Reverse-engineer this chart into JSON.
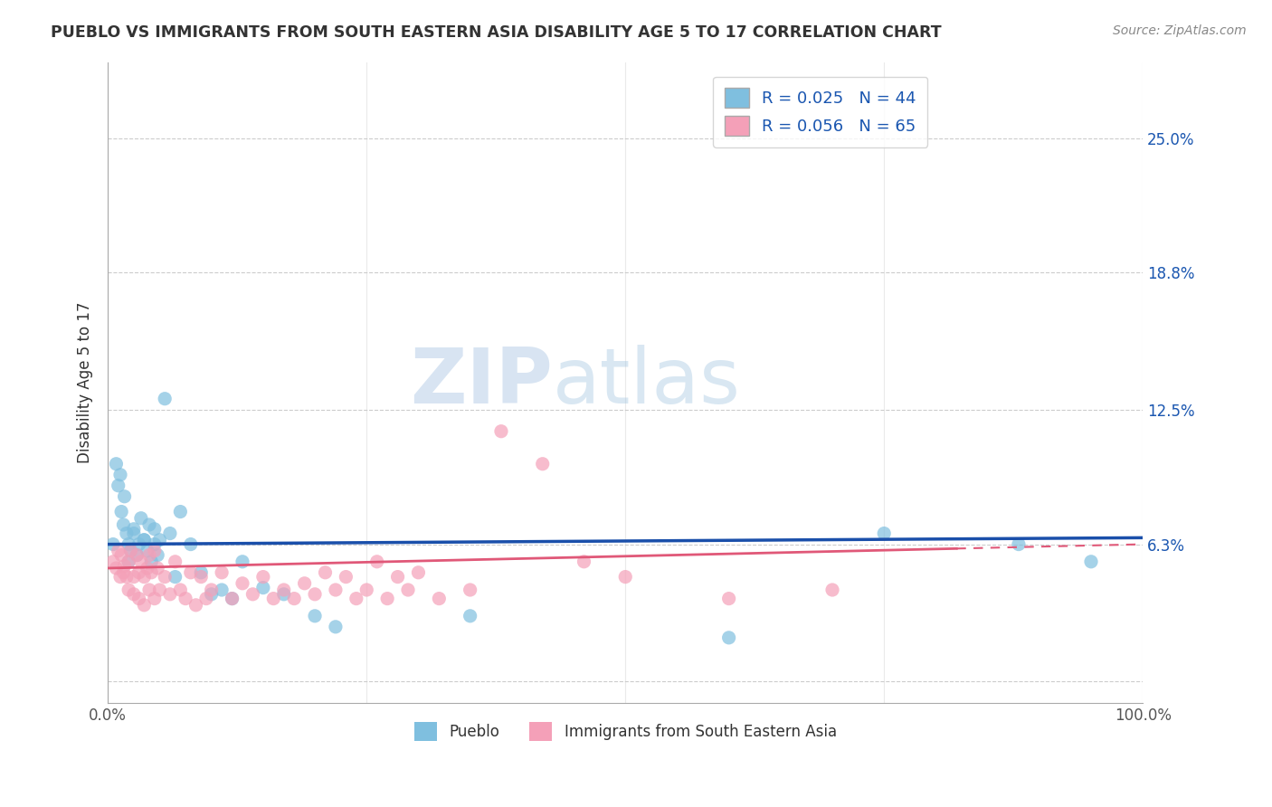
{
  "title": "PUEBLO VS IMMIGRANTS FROM SOUTH EASTERN ASIA DISABILITY AGE 5 TO 17 CORRELATION CHART",
  "source": "Source: ZipAtlas.com",
  "ylabel": "Disability Age 5 to 17",
  "xlim": [
    0,
    1.0
  ],
  "ylim": [
    -0.01,
    0.285
  ],
  "yticks": [
    0.0,
    0.063,
    0.125,
    0.188,
    0.25
  ],
  "ytick_labels": [
    "",
    "6.3%",
    "12.5%",
    "18.8%",
    "25.0%"
  ],
  "xtick_labels": [
    "0.0%",
    "100.0%"
  ],
  "legend_label1": "Pueblo",
  "legend_label2": "Immigrants from South Eastern Asia",
  "color_pueblo": "#7fbfdf",
  "color_immigrants": "#f4a0b8",
  "color_line_pueblo": "#1a4faa",
  "color_line_immigrants": "#e05878",
  "watermark_zip": "ZIP",
  "watermark_atlas": "atlas",
  "background_color": "#ffffff",
  "grid_color": "#cccccc",
  "pueblo_x": [
    0.005,
    0.01,
    0.013,
    0.015,
    0.018,
    0.02,
    0.022,
    0.025,
    0.028,
    0.03,
    0.032,
    0.035,
    0.038,
    0.04,
    0.042,
    0.045,
    0.048,
    0.05,
    0.055,
    0.06,
    0.065,
    0.07,
    0.08,
    0.09,
    0.1,
    0.11,
    0.12,
    0.13,
    0.15,
    0.17,
    0.2,
    0.22,
    0.008,
    0.012,
    0.016,
    0.02,
    0.025,
    0.035,
    0.045,
    0.35,
    0.6,
    0.75,
    0.88,
    0.95
  ],
  "pueblo_y": [
    0.063,
    0.09,
    0.078,
    0.072,
    0.068,
    0.063,
    0.06,
    0.068,
    0.058,
    0.063,
    0.075,
    0.065,
    0.06,
    0.072,
    0.055,
    0.07,
    0.058,
    0.065,
    0.13,
    0.068,
    0.048,
    0.078,
    0.063,
    0.05,
    0.04,
    0.042,
    0.038,
    0.055,
    0.043,
    0.04,
    0.03,
    0.025,
    0.1,
    0.095,
    0.085,
    0.055,
    0.07,
    0.065,
    0.063,
    0.03,
    0.02,
    0.068,
    0.063,
    0.055
  ],
  "immigrants_x": [
    0.005,
    0.008,
    0.01,
    0.012,
    0.013,
    0.015,
    0.016,
    0.018,
    0.02,
    0.02,
    0.022,
    0.025,
    0.025,
    0.028,
    0.03,
    0.03,
    0.032,
    0.035,
    0.035,
    0.038,
    0.04,
    0.04,
    0.042,
    0.045,
    0.045,
    0.048,
    0.05,
    0.055,
    0.06,
    0.065,
    0.07,
    0.075,
    0.08,
    0.085,
    0.09,
    0.095,
    0.1,
    0.11,
    0.12,
    0.13,
    0.14,
    0.15,
    0.16,
    0.17,
    0.18,
    0.19,
    0.2,
    0.21,
    0.22,
    0.23,
    0.24,
    0.25,
    0.26,
    0.27,
    0.28,
    0.29,
    0.3,
    0.32,
    0.35,
    0.38,
    0.42,
    0.46,
    0.5,
    0.6,
    0.7
  ],
  "immigrants_y": [
    0.055,
    0.052,
    0.06,
    0.048,
    0.058,
    0.05,
    0.053,
    0.048,
    0.055,
    0.042,
    0.06,
    0.048,
    0.04,
    0.058,
    0.05,
    0.038,
    0.055,
    0.048,
    0.035,
    0.052,
    0.058,
    0.042,
    0.05,
    0.06,
    0.038,
    0.052,
    0.042,
    0.048,
    0.04,
    0.055,
    0.042,
    0.038,
    0.05,
    0.035,
    0.048,
    0.038,
    0.042,
    0.05,
    0.038,
    0.045,
    0.04,
    0.048,
    0.038,
    0.042,
    0.038,
    0.045,
    0.04,
    0.05,
    0.042,
    0.048,
    0.038,
    0.042,
    0.055,
    0.038,
    0.048,
    0.042,
    0.05,
    0.038,
    0.042,
    0.115,
    0.1,
    0.055,
    0.048,
    0.038,
    0.042
  ]
}
